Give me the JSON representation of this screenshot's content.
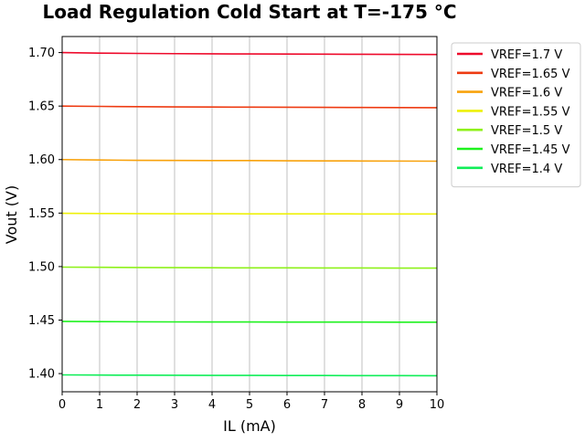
{
  "chart_data": {
    "type": "line",
    "title": "Load Regulation Cold Start at T=-175 °C",
    "xlabel": "IL (mA)",
    "ylabel": "Vout (V)",
    "xlim": [
      0,
      10
    ],
    "ylim": [
      1.383,
      1.715
    ],
    "xticks": [
      0,
      1,
      2,
      3,
      4,
      5,
      6,
      7,
      8,
      9,
      10
    ],
    "yticks": [
      1.4,
      1.45,
      1.5,
      1.55,
      1.6,
      1.65,
      1.7
    ],
    "grid": "vertical",
    "legend_position": "outside-top-right",
    "x": [
      0,
      1,
      2,
      3,
      4,
      5,
      6,
      7,
      8,
      9,
      10
    ],
    "series": [
      {
        "name": "VREF=1.7 V",
        "color": "#ee0a2b",
        "values": [
          1.7,
          1.6995,
          1.6992,
          1.699,
          1.6988,
          1.6987,
          1.6986,
          1.6985,
          1.6984,
          1.6983,
          1.6982
        ]
      },
      {
        "name": "VREF=1.65 V",
        "color": "#ee3b12",
        "values": [
          1.65,
          1.6497,
          1.6494,
          1.6492,
          1.6491,
          1.649,
          1.6489,
          1.6488,
          1.6487,
          1.6486,
          1.6485
        ]
      },
      {
        "name": "VREF=1.6 V",
        "color": "#f8a20c",
        "values": [
          1.6,
          1.5996,
          1.5993,
          1.5992,
          1.5991,
          1.5991,
          1.5989,
          1.5988,
          1.5987,
          1.5986,
          1.5985
        ]
      },
      {
        "name": "VREF=1.55 V",
        "color": "#eef10a",
        "values": [
          1.5498,
          1.5496,
          1.5495,
          1.5494,
          1.5494,
          1.5493,
          1.5493,
          1.5493,
          1.5492,
          1.5492,
          1.5492
        ]
      },
      {
        "name": "VREF=1.5 V",
        "color": "#8ef11a",
        "values": [
          1.4995,
          1.4993,
          1.4991,
          1.499,
          1.4989,
          1.4988,
          1.4988,
          1.4987,
          1.4987,
          1.4986,
          1.4986
        ]
      },
      {
        "name": "VREF=1.45 V",
        "color": "#1ef21e",
        "values": [
          1.4488,
          1.4486,
          1.4484,
          1.4483,
          1.4482,
          1.4482,
          1.4481,
          1.4481,
          1.4481,
          1.448,
          1.448
        ]
      },
      {
        "name": "VREF=1.4 V",
        "color": "#10ee58",
        "values": [
          1.3988,
          1.3986,
          1.3985,
          1.3984,
          1.3983,
          1.3983,
          1.3982,
          1.3982,
          1.3981,
          1.3981,
          1.398
        ]
      }
    ]
  }
}
